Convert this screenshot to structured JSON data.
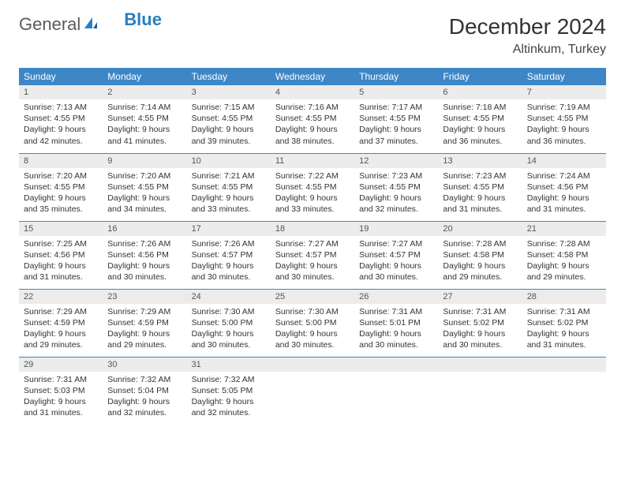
{
  "logo": {
    "general": "General",
    "blue": "Blue"
  },
  "title": "December 2024",
  "location": "Altinkum, Turkey",
  "colors": {
    "header_bg": "#3d87c7",
    "header_text": "#ffffff",
    "daynum_bg": "#ececec",
    "border": "#3d87c7",
    "logo_blue": "#2a7fbf",
    "logo_gray": "#5a5a5a"
  },
  "weekdays": [
    "Sunday",
    "Monday",
    "Tuesday",
    "Wednesday",
    "Thursday",
    "Friday",
    "Saturday"
  ],
  "days": [
    {
      "n": "1",
      "sunrise": "Sunrise: 7:13 AM",
      "sunset": "Sunset: 4:55 PM",
      "day1": "Daylight: 9 hours",
      "day2": "and 42 minutes."
    },
    {
      "n": "2",
      "sunrise": "Sunrise: 7:14 AM",
      "sunset": "Sunset: 4:55 PM",
      "day1": "Daylight: 9 hours",
      "day2": "and 41 minutes."
    },
    {
      "n": "3",
      "sunrise": "Sunrise: 7:15 AM",
      "sunset": "Sunset: 4:55 PM",
      "day1": "Daylight: 9 hours",
      "day2": "and 39 minutes."
    },
    {
      "n": "4",
      "sunrise": "Sunrise: 7:16 AM",
      "sunset": "Sunset: 4:55 PM",
      "day1": "Daylight: 9 hours",
      "day2": "and 38 minutes."
    },
    {
      "n": "5",
      "sunrise": "Sunrise: 7:17 AM",
      "sunset": "Sunset: 4:55 PM",
      "day1": "Daylight: 9 hours",
      "day2": "and 37 minutes."
    },
    {
      "n": "6",
      "sunrise": "Sunrise: 7:18 AM",
      "sunset": "Sunset: 4:55 PM",
      "day1": "Daylight: 9 hours",
      "day2": "and 36 minutes."
    },
    {
      "n": "7",
      "sunrise": "Sunrise: 7:19 AM",
      "sunset": "Sunset: 4:55 PM",
      "day1": "Daylight: 9 hours",
      "day2": "and 36 minutes."
    },
    {
      "n": "8",
      "sunrise": "Sunrise: 7:20 AM",
      "sunset": "Sunset: 4:55 PM",
      "day1": "Daylight: 9 hours",
      "day2": "and 35 minutes."
    },
    {
      "n": "9",
      "sunrise": "Sunrise: 7:20 AM",
      "sunset": "Sunset: 4:55 PM",
      "day1": "Daylight: 9 hours",
      "day2": "and 34 minutes."
    },
    {
      "n": "10",
      "sunrise": "Sunrise: 7:21 AM",
      "sunset": "Sunset: 4:55 PM",
      "day1": "Daylight: 9 hours",
      "day2": "and 33 minutes."
    },
    {
      "n": "11",
      "sunrise": "Sunrise: 7:22 AM",
      "sunset": "Sunset: 4:55 PM",
      "day1": "Daylight: 9 hours",
      "day2": "and 33 minutes."
    },
    {
      "n": "12",
      "sunrise": "Sunrise: 7:23 AM",
      "sunset": "Sunset: 4:55 PM",
      "day1": "Daylight: 9 hours",
      "day2": "and 32 minutes."
    },
    {
      "n": "13",
      "sunrise": "Sunrise: 7:23 AM",
      "sunset": "Sunset: 4:55 PM",
      "day1": "Daylight: 9 hours",
      "day2": "and 31 minutes."
    },
    {
      "n": "14",
      "sunrise": "Sunrise: 7:24 AM",
      "sunset": "Sunset: 4:56 PM",
      "day1": "Daylight: 9 hours",
      "day2": "and 31 minutes."
    },
    {
      "n": "15",
      "sunrise": "Sunrise: 7:25 AM",
      "sunset": "Sunset: 4:56 PM",
      "day1": "Daylight: 9 hours",
      "day2": "and 31 minutes."
    },
    {
      "n": "16",
      "sunrise": "Sunrise: 7:26 AM",
      "sunset": "Sunset: 4:56 PM",
      "day1": "Daylight: 9 hours",
      "day2": "and 30 minutes."
    },
    {
      "n": "17",
      "sunrise": "Sunrise: 7:26 AM",
      "sunset": "Sunset: 4:57 PM",
      "day1": "Daylight: 9 hours",
      "day2": "and 30 minutes."
    },
    {
      "n": "18",
      "sunrise": "Sunrise: 7:27 AM",
      "sunset": "Sunset: 4:57 PM",
      "day1": "Daylight: 9 hours",
      "day2": "and 30 minutes."
    },
    {
      "n": "19",
      "sunrise": "Sunrise: 7:27 AM",
      "sunset": "Sunset: 4:57 PM",
      "day1": "Daylight: 9 hours",
      "day2": "and 30 minutes."
    },
    {
      "n": "20",
      "sunrise": "Sunrise: 7:28 AM",
      "sunset": "Sunset: 4:58 PM",
      "day1": "Daylight: 9 hours",
      "day2": "and 29 minutes."
    },
    {
      "n": "21",
      "sunrise": "Sunrise: 7:28 AM",
      "sunset": "Sunset: 4:58 PM",
      "day1": "Daylight: 9 hours",
      "day2": "and 29 minutes."
    },
    {
      "n": "22",
      "sunrise": "Sunrise: 7:29 AM",
      "sunset": "Sunset: 4:59 PM",
      "day1": "Daylight: 9 hours",
      "day2": "and 29 minutes."
    },
    {
      "n": "23",
      "sunrise": "Sunrise: 7:29 AM",
      "sunset": "Sunset: 4:59 PM",
      "day1": "Daylight: 9 hours",
      "day2": "and 29 minutes."
    },
    {
      "n": "24",
      "sunrise": "Sunrise: 7:30 AM",
      "sunset": "Sunset: 5:00 PM",
      "day1": "Daylight: 9 hours",
      "day2": "and 30 minutes."
    },
    {
      "n": "25",
      "sunrise": "Sunrise: 7:30 AM",
      "sunset": "Sunset: 5:00 PM",
      "day1": "Daylight: 9 hours",
      "day2": "and 30 minutes."
    },
    {
      "n": "26",
      "sunrise": "Sunrise: 7:31 AM",
      "sunset": "Sunset: 5:01 PM",
      "day1": "Daylight: 9 hours",
      "day2": "and 30 minutes."
    },
    {
      "n": "27",
      "sunrise": "Sunrise: 7:31 AM",
      "sunset": "Sunset: 5:02 PM",
      "day1": "Daylight: 9 hours",
      "day2": "and 30 minutes."
    },
    {
      "n": "28",
      "sunrise": "Sunrise: 7:31 AM",
      "sunset": "Sunset: 5:02 PM",
      "day1": "Daylight: 9 hours",
      "day2": "and 31 minutes."
    },
    {
      "n": "29",
      "sunrise": "Sunrise: 7:31 AM",
      "sunset": "Sunset: 5:03 PM",
      "day1": "Daylight: 9 hours",
      "day2": "and 31 minutes."
    },
    {
      "n": "30",
      "sunrise": "Sunrise: 7:32 AM",
      "sunset": "Sunset: 5:04 PM",
      "day1": "Daylight: 9 hours",
      "day2": "and 32 minutes."
    },
    {
      "n": "31",
      "sunrise": "Sunrise: 7:32 AM",
      "sunset": "Sunset: 5:05 PM",
      "day1": "Daylight: 9 hours",
      "day2": "and 32 minutes."
    }
  ]
}
